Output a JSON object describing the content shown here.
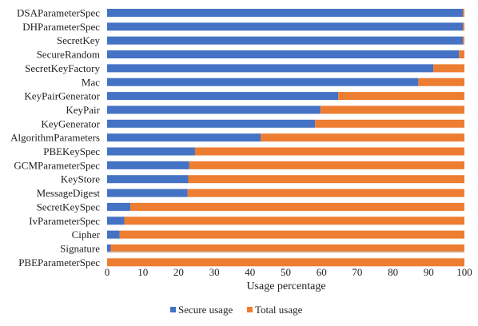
{
  "chart_data": {
    "type": "bar",
    "orientation": "horizontal",
    "stacked": true,
    "categories": [
      "DSAParameterSpec",
      "DHParameterSpec",
      "SecretKey",
      "SecureRandom",
      "SecretKeyFactory",
      "Mac",
      "KeyPairGenerator",
      "KeyPair",
      "KeyGenerator",
      "AlgorithmParameters",
      "PBEKeySpec",
      "GCMParameterSpec",
      "KeyStore",
      "MessageDigest",
      "SecretKeySpec",
      "IvParameterSpec",
      "Cipher",
      "Signature",
      "PBEParameterSpec"
    ],
    "series": [
      {
        "name": "Secure usage",
        "color": "#4472C4",
        "values": [
          99.6,
          99.6,
          99.6,
          98.5,
          91.3,
          87.1,
          64.7,
          59.7,
          58.2,
          43.0,
          24.6,
          23.0,
          22.7,
          22.5,
          6.5,
          4.8,
          3.5,
          1.0,
          0.0
        ]
      },
      {
        "name": "Total usage",
        "color": "#ED7D31",
        "values": [
          0.4,
          0.4,
          0.4,
          1.5,
          8.7,
          12.9,
          35.3,
          40.3,
          41.8,
          57.0,
          75.4,
          77.0,
          77.3,
          77.5,
          93.5,
          95.2,
          96.5,
          99.0,
          100.0
        ]
      }
    ],
    "xlabel": "Usage percentage",
    "ylabel": "",
    "title": "",
    "xlim": [
      0,
      100
    ],
    "xticks": [
      "0",
      "10",
      "20",
      "30",
      "40",
      "50",
      "60",
      "70",
      "80",
      "90",
      "100"
    ],
    "grid": false,
    "legend_position": "bottom"
  }
}
